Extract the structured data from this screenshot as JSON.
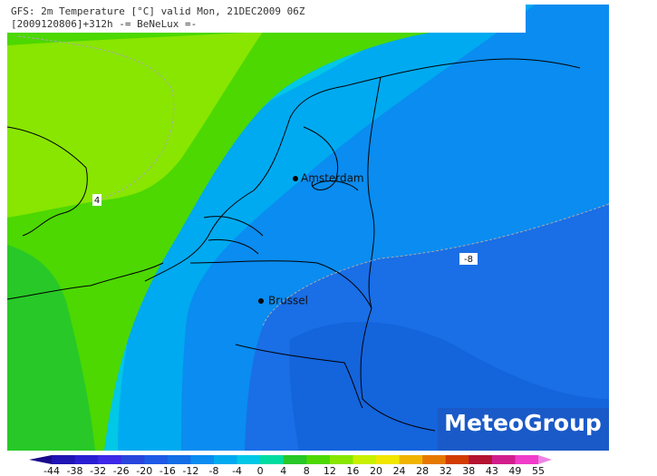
{
  "header": {
    "line1": "GFS: 2m Temperature [°C] valid Mon, 21DEC2009 06Z",
    "line2": "[2009120806]+312h -= BeNeLux =-"
  },
  "cities": [
    {
      "label": "Amsterdam"
    },
    {
      "label": "Brussel"
    }
  ],
  "contour_labels": [
    "4",
    "-8"
  ],
  "logo": "MeteoGroup",
  "colorbar": {
    "labels": [
      "-44",
      "-38",
      "-32",
      "-26",
      "-20",
      "-16",
      "-12",
      "-8",
      "-4",
      "0",
      "4",
      "8",
      "12",
      "16",
      "20",
      "24",
      "28",
      "32",
      "38",
      "43",
      "49",
      "55"
    ],
    "colors": [
      "#1a0a8c",
      "#1f14b4",
      "#2a1ed2",
      "#3c28e6",
      "#2846dc",
      "#1e5ae6",
      "#146ee6",
      "#0a8cf0",
      "#00aaf0",
      "#00c8e6",
      "#00dca0",
      "#28c828",
      "#4cd800",
      "#88e600",
      "#c8f000",
      "#f0e600",
      "#f0b400",
      "#e67800",
      "#d23c00",
      "#b41432",
      "#d21e8c",
      "#f03cc8",
      "#f082e6"
    ]
  }
}
